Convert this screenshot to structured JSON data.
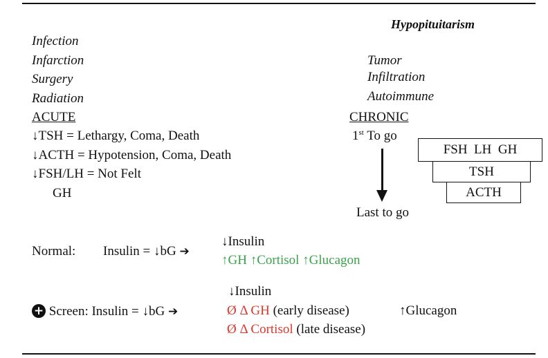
{
  "title": "Hypopituitarism",
  "acute": {
    "causes": [
      "Infection",
      "Infarction",
      "Surgery",
      "Radiation"
    ],
    "heading": "ACUTE",
    "effects": [
      "↓TSH = Lethargy, Coma, Death",
      "↓ACTH = Hypotension, Coma, Death",
      "↓FSH/LH = Not Felt",
      "GH"
    ]
  },
  "chronic": {
    "causes": [
      "Tumor",
      "Infiltration",
      "Autoimmune"
    ],
    "heading": "CHRONIC",
    "first_prefix": "1",
    "first_sup": "st",
    "first_suffix": " To go",
    "last": "Last to go",
    "boxes": [
      "FSH  LH  GH",
      "TSH",
      "ACTH"
    ]
  },
  "normal": {
    "label": "Normal:",
    "formula": "Insulin = ↓bG",
    "arrow": "➔",
    "line1": "↓Insulin",
    "line2": "↑GH ↑Cortisol ↑Glucagon"
  },
  "screen": {
    "icon": "plus-circle",
    "label": "Screen: Insulin = ↓bG",
    "arrow": "➔",
    "line1": "↓Insulin",
    "gh_red": "Ø Δ GH",
    "gh_black": " (early disease)",
    "glucagon": "↑Glucagon",
    "cortisol_red": "Ø Δ Cortisol",
    "cortisol_black": " (late disease)"
  },
  "colors": {
    "green": "#3aa34a",
    "red": "#e0352b"
  }
}
